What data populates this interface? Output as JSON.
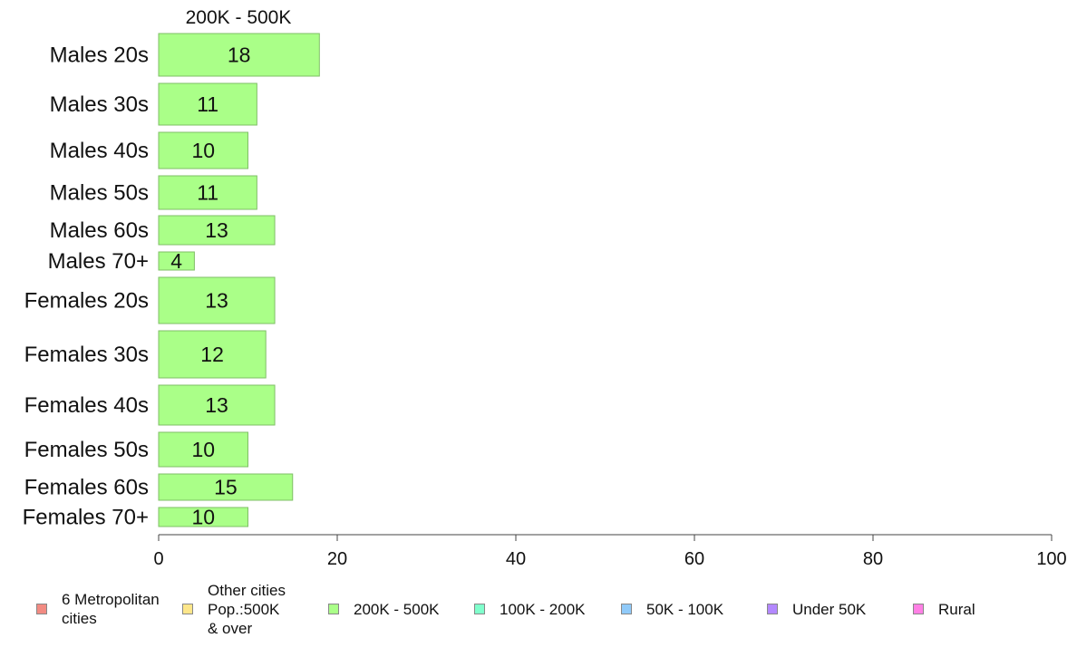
{
  "chart_data": {
    "type": "bar",
    "orientation": "horizontal",
    "title": "200K - 500K",
    "xlabel": "",
    "ylabel": "",
    "xlim": [
      0,
      100
    ],
    "xticks": [
      0,
      20,
      40,
      60,
      80,
      100
    ],
    "categories": [
      "Males 20s",
      "Males 30s",
      "Males 40s",
      "Males 50s",
      "Males 60s",
      "Males 70+",
      "Females 20s",
      "Females 30s",
      "Females 40s",
      "Females 50s",
      "Females 60s",
      "Females 70+"
    ],
    "values": [
      18,
      11,
      10,
      11,
      13,
      4,
      13,
      12,
      13,
      10,
      15,
      10
    ],
    "data_labels": [
      "18",
      "11",
      "10",
      "11",
      "13",
      "4",
      "13",
      "12",
      "13",
      "10",
      "15",
      "10"
    ],
    "bar_color": "#aaff88",
    "bar_edge_color": "#7fbf66",
    "grid": false,
    "legend": {
      "placement": "bottom",
      "items": [
        {
          "label": "6 Metropolitan\n cities",
          "color": "#f28b82"
        },
        {
          "label": "Other cities\nPop.:500K\n & over",
          "color": "#fde68a"
        },
        {
          "label": "200K - 500K",
          "color": "#aaff88"
        },
        {
          "label": "100K - 200K",
          "color": "#80ffcc"
        },
        {
          "label": "50K - 100K",
          "color": "#90caf9"
        },
        {
          "label": "Under 50K",
          "color": "#b388ff"
        },
        {
          "label": "Rural",
          "color": "#ff80e5"
        }
      ]
    }
  }
}
